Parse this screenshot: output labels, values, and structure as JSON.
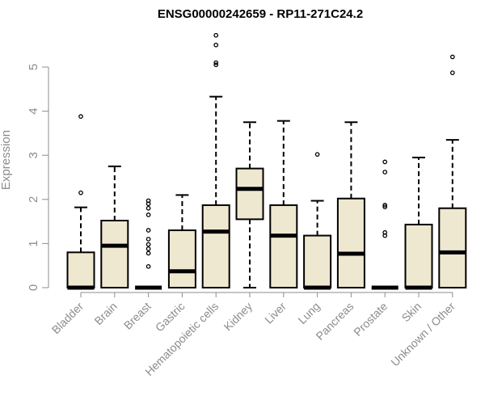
{
  "chart_data": {
    "type": "box",
    "title": "ENSG00000242659 - RP11-271C24.2",
    "xlabel": "",
    "ylabel": "Expression",
    "ylim": [
      0,
      5.8
    ],
    "yticks": [
      0,
      1,
      2,
      3,
      4,
      5
    ],
    "grid": false,
    "legend": "none",
    "box_fill": "#efe8d0",
    "box_stroke": "#000000",
    "text_color": "#8c8c8c",
    "categories": [
      "Bladder",
      "Brain",
      "Breast",
      "Gastric",
      "Hematopoietic cells",
      "Kidney",
      "Liver",
      "Lung",
      "Pancreas",
      "Prostate",
      "Skin",
      "Unknown / Other"
    ],
    "boxes": [
      {
        "q1": 0,
        "median": 0,
        "q3": 0.8,
        "whisker_low": 0,
        "whisker_high": 1.82,
        "outliers": [
          2.15,
          3.88
        ]
      },
      {
        "q1": 0,
        "median": 0.95,
        "q3": 1.52,
        "whisker_low": 0,
        "whisker_high": 2.75,
        "outliers": []
      },
      {
        "q1": 0,
        "median": 0,
        "q3": 0,
        "whisker_low": 0,
        "whisker_high": 0,
        "outliers": [
          0.48,
          0.78,
          0.88,
          0.98,
          1.1,
          1.3,
          1.65,
          1.8,
          1.9,
          1.97
        ]
      },
      {
        "q1": 0,
        "median": 0.37,
        "q3": 1.3,
        "whisker_low": 0,
        "whisker_high": 2.1,
        "outliers": []
      },
      {
        "q1": 0,
        "median": 1.27,
        "q3": 1.87,
        "whisker_low": 0,
        "whisker_high": 4.33,
        "outliers": [
          5.05,
          5.1,
          5.5,
          5.72
        ]
      },
      {
        "q1": 1.55,
        "median": 2.24,
        "q3": 2.7,
        "whisker_low": 0,
        "whisker_high": 3.75,
        "outliers": []
      },
      {
        "q1": 0,
        "median": 1.18,
        "q3": 1.87,
        "whisker_low": 0,
        "whisker_high": 3.78,
        "outliers": []
      },
      {
        "q1": 0,
        "median": 0,
        "q3": 1.18,
        "whisker_low": 0,
        "whisker_high": 1.97,
        "outliers": [
          3.02
        ]
      },
      {
        "q1": 0,
        "median": 0.77,
        "q3": 2.02,
        "whisker_low": 0,
        "whisker_high": 3.75,
        "outliers": []
      },
      {
        "q1": 0,
        "median": 0,
        "q3": 0,
        "whisker_low": 0,
        "whisker_high": 0,
        "outliers": [
          1.18,
          1.25,
          1.83,
          1.87,
          2.62,
          2.85
        ]
      },
      {
        "q1": 0,
        "median": 0,
        "q3": 1.43,
        "whisker_low": 0,
        "whisker_high": 2.95,
        "outliers": []
      },
      {
        "q1": 0,
        "median": 0.8,
        "q3": 1.8,
        "whisker_low": 0,
        "whisker_high": 3.35,
        "outliers": [
          4.87,
          5.23
        ]
      }
    ]
  }
}
